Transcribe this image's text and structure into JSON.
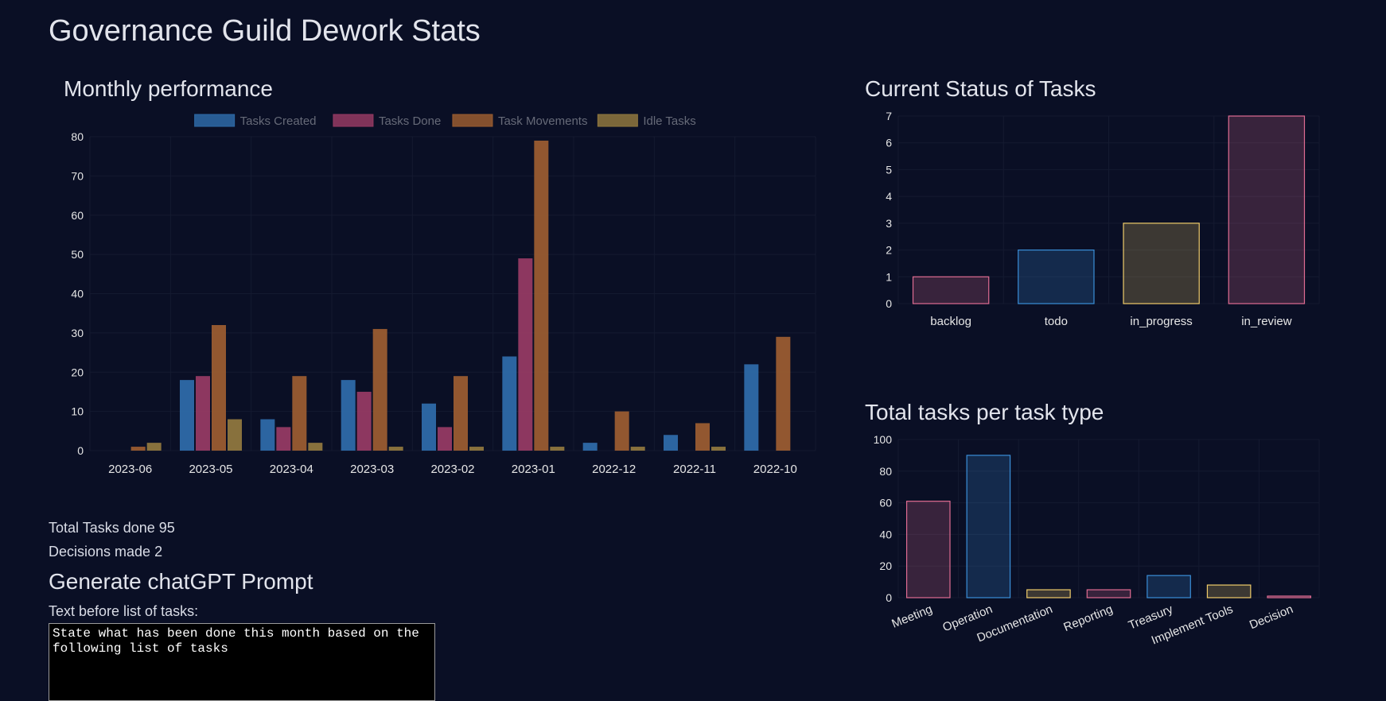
{
  "page": {
    "title": "Governance Guild Dework Stats"
  },
  "stats": {
    "tasks_done_label": "Total Tasks done",
    "tasks_done_value": "95",
    "decisions_label": "Decisions made",
    "decisions_value": "2"
  },
  "prompt": {
    "section_title": "Generate chatGPT Prompt",
    "field_label": "Text before list of tasks:",
    "field_value": "State what has been done this month based on the following list of tasks"
  },
  "colors": {
    "background": "#0a0f25",
    "tasks_created": "#2e6aa8",
    "tasks_done": "#953a63",
    "task_movements": "#9a5c30",
    "idle_tasks": "#8f773e"
  },
  "chart_data": [
    {
      "type": "bar",
      "title": "Monthly performance",
      "categories": [
        "2023-06",
        "2023-05",
        "2023-04",
        "2023-03",
        "2023-02",
        "2023-01",
        "2022-12",
        "2022-11",
        "2022-10"
      ],
      "series": [
        {
          "name": "Tasks Created",
          "color": "#2e6aa8",
          "values": [
            0,
            18,
            8,
            18,
            12,
            24,
            2,
            4,
            22
          ]
        },
        {
          "name": "Tasks Done",
          "color": "#953a63",
          "values": [
            0,
            19,
            6,
            15,
            6,
            49,
            0,
            0,
            0
          ]
        },
        {
          "name": "Task Movements",
          "color": "#9a5c30",
          "values": [
            1,
            32,
            19,
            31,
            19,
            79,
            10,
            7,
            29
          ]
        },
        {
          "name": "Idle Tasks",
          "color": "#8f773e",
          "values": [
            2,
            8,
            2,
            1,
            1,
            1,
            1,
            1,
            0
          ]
        }
      ],
      "yticks": [
        0,
        10,
        20,
        30,
        40,
        50,
        60,
        70,
        80
      ],
      "ylim": [
        0,
        80
      ],
      "legend": "top",
      "grid": true
    },
    {
      "type": "bar",
      "title": "Current Status of Tasks",
      "categories": [
        "backlog",
        "todo",
        "in_progress",
        "in_review"
      ],
      "values": [
        1,
        2,
        3,
        7
      ],
      "bar_colors": [
        "#e06c92",
        "#3a8fd9",
        "#f0cc6a",
        "#e06c92"
      ],
      "yticks": [
        0,
        1,
        2,
        3,
        4,
        5,
        6,
        7
      ],
      "ylim": [
        0,
        7
      ],
      "grid": true
    },
    {
      "type": "bar",
      "title": "Total tasks per task type",
      "categories": [
        "Meeting",
        "Operation",
        "Documentation",
        "Reporting",
        "Treasury",
        "Implement Tools",
        "Decision"
      ],
      "values": [
        61,
        90,
        5,
        5,
        14,
        8,
        1
      ],
      "bar_colors": [
        "#e06c92",
        "#3a8fd9",
        "#f0cc6a",
        "#e06c92",
        "#3a8fd9",
        "#f0cc6a",
        "#e06c92"
      ],
      "yticks": [
        0,
        20,
        40,
        60,
        80,
        100
      ],
      "ylim": [
        0,
        100
      ],
      "grid": true
    }
  ]
}
